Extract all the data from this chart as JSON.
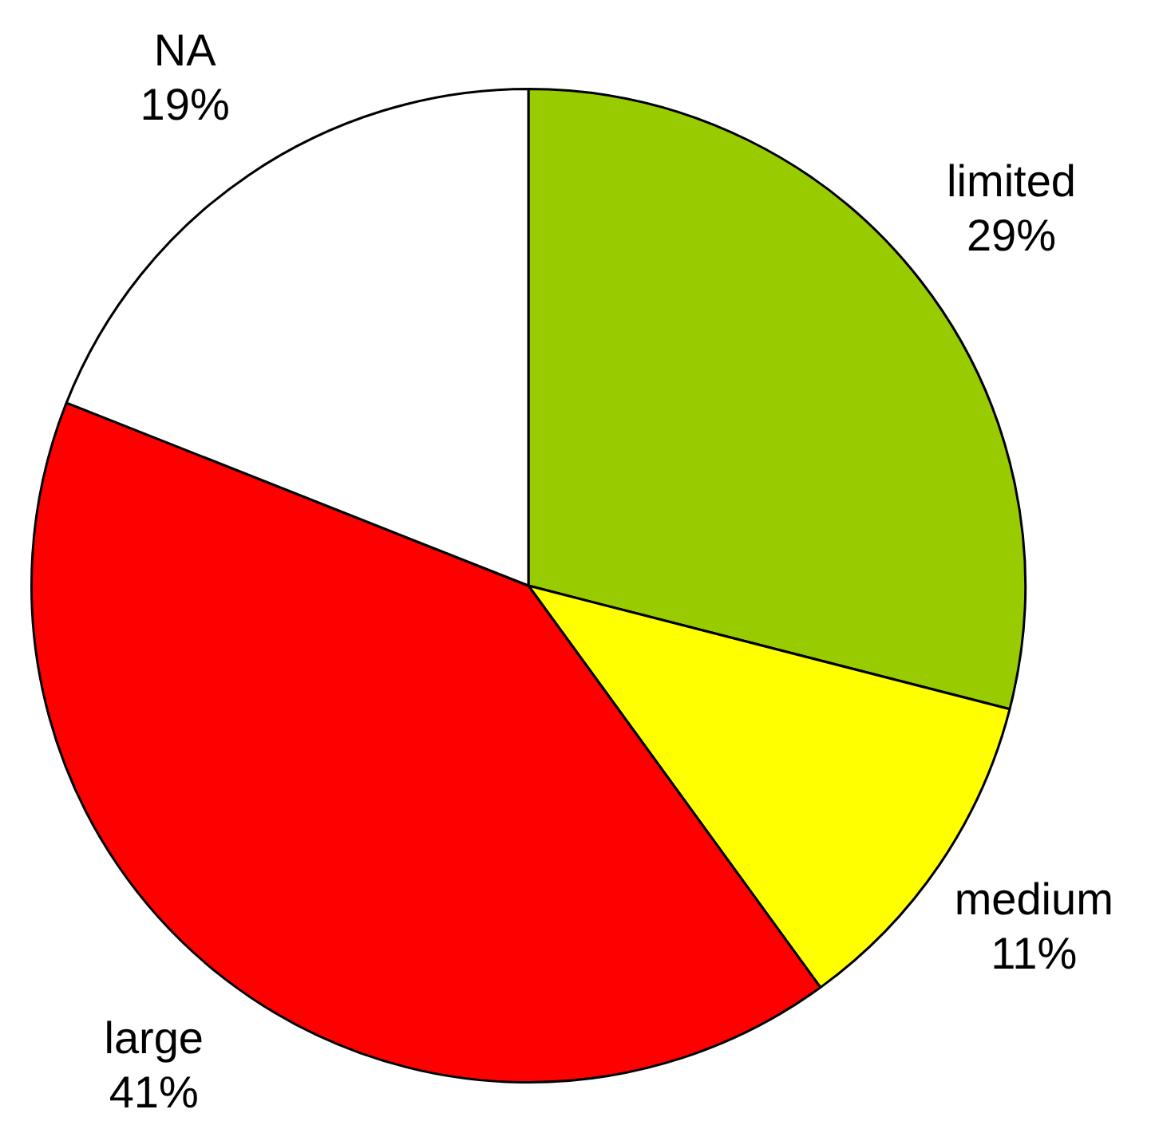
{
  "chart_data": {
    "type": "pie",
    "categories": [
      "limited",
      "medium",
      "large",
      "NA"
    ],
    "values": [
      29,
      11,
      41,
      19
    ],
    "value_labels": [
      "29%",
      "11%",
      "41%",
      "19%"
    ],
    "colors": [
      "#99cc00",
      "#ffff00",
      "#ff0000",
      "#ffffff"
    ],
    "legend": false
  }
}
